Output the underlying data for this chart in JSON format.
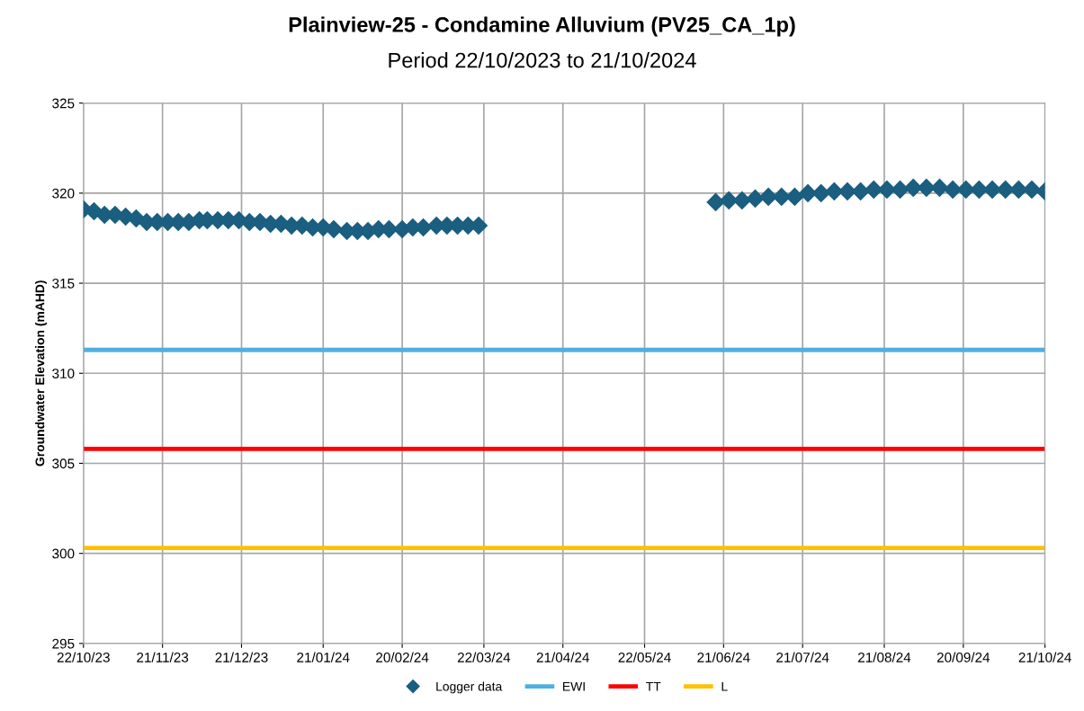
{
  "chart_data": {
    "type": "scatter",
    "title": "Plainview-25 - Condamine Alluvium (PV25_CA_1p)",
    "subtitle": "Period 22/10/2023 to 21/10/2024",
    "ylabel": "Groundwater Elevation (mAHD)",
    "series": [
      {
        "name": "Logger data",
        "color": "#1a5e80",
        "x": [
          "2023-10-22",
          "2023-10-26",
          "2023-10-30",
          "2023-11-03",
          "2023-11-07",
          "2023-11-11",
          "2023-11-15",
          "2023-11-19",
          "2023-11-23",
          "2023-11-27",
          "2023-12-01",
          "2023-12-05",
          "2023-12-08",
          "2023-12-12",
          "2023-12-16",
          "2023-12-20",
          "2023-12-24",
          "2023-12-28",
          "2024-01-01",
          "2024-01-05",
          "2024-01-09",
          "2024-01-13",
          "2024-01-17",
          "2024-01-21",
          "2024-01-25",
          "2024-01-30",
          "2024-02-03",
          "2024-02-07",
          "2024-02-11",
          "2024-02-15",
          "2024-02-20",
          "2024-02-24",
          "2024-02-28",
          "2024-03-04",
          "2024-03-08",
          "2024-03-12",
          "2024-03-16",
          "2024-03-20",
          "2024-06-18",
          "2024-06-23",
          "2024-06-28",
          "2024-07-03",
          "2024-07-08",
          "2024-07-13",
          "2024-07-18",
          "2024-07-23",
          "2024-07-28",
          "2024-08-02",
          "2024-08-07",
          "2024-08-12",
          "2024-08-17",
          "2024-08-22",
          "2024-08-27",
          "2024-09-01",
          "2024-09-06",
          "2024-09-11",
          "2024-09-16",
          "2024-09-21",
          "2024-09-26",
          "2024-10-01",
          "2024-10-06",
          "2024-10-11",
          "2024-10-16",
          "2024-10-21"
        ],
        "values": [
          319.1,
          319.0,
          318.8,
          318.8,
          318.7,
          318.6,
          318.4,
          318.4,
          318.4,
          318.4,
          318.4,
          318.5,
          318.5,
          318.5,
          318.5,
          318.5,
          318.4,
          318.4,
          318.3,
          318.3,
          318.2,
          318.2,
          318.1,
          318.1,
          318.0,
          317.9,
          317.9,
          317.9,
          318.0,
          318.0,
          318.0,
          318.1,
          318.1,
          318.2,
          318.2,
          318.2,
          318.2,
          318.2,
          319.5,
          319.6,
          319.6,
          319.7,
          319.8,
          319.8,
          319.8,
          320.0,
          320.0,
          320.1,
          320.1,
          320.1,
          320.2,
          320.2,
          320.2,
          320.3,
          320.3,
          320.3,
          320.2,
          320.2,
          320.2,
          320.2,
          320.2,
          320.2,
          320.2,
          320.1
        ]
      }
    ],
    "ref_lines": [
      {
        "axis": "y",
        "value": 311.3,
        "label": "EWI",
        "color": "#4fb0e0"
      },
      {
        "axis": "y",
        "value": 305.8,
        "label": "TT",
        "color": "#ff0000"
      },
      {
        "axis": "y",
        "value": 300.3,
        "label": "L",
        "color": "#ffc000"
      }
    ],
    "marker": "diamond",
    "grid": true,
    "legend": "bottom",
    "xlim": [
      "2023-10-22",
      "2024-10-21"
    ],
    "xticks": [
      {
        "value": "2023-10-22",
        "label": "22/10/23"
      },
      {
        "value": "2023-11-21",
        "label": "21/11/23"
      },
      {
        "value": "2023-12-21",
        "label": "21/12/23"
      },
      {
        "value": "2024-01-21",
        "label": "21/01/24"
      },
      {
        "value": "2024-02-20",
        "label": "20/02/24"
      },
      {
        "value": "2024-03-22",
        "label": "22/03/24"
      },
      {
        "value": "2024-04-21",
        "label": "21/04/24"
      },
      {
        "value": "2024-05-22",
        "label": "22/05/24"
      },
      {
        "value": "2024-06-21",
        "label": "21/06/24"
      },
      {
        "value": "2024-07-21",
        "label": "21/07/24"
      },
      {
        "value": "2024-08-21",
        "label": "21/08/24"
      },
      {
        "value": "2024-09-20",
        "label": "20/09/24"
      },
      {
        "value": "2024-10-21",
        "label": "21/10/24"
      }
    ],
    "ylim": [
      295,
      325
    ],
    "yticks": [
      295,
      300,
      305,
      310,
      315,
      320,
      325
    ]
  }
}
